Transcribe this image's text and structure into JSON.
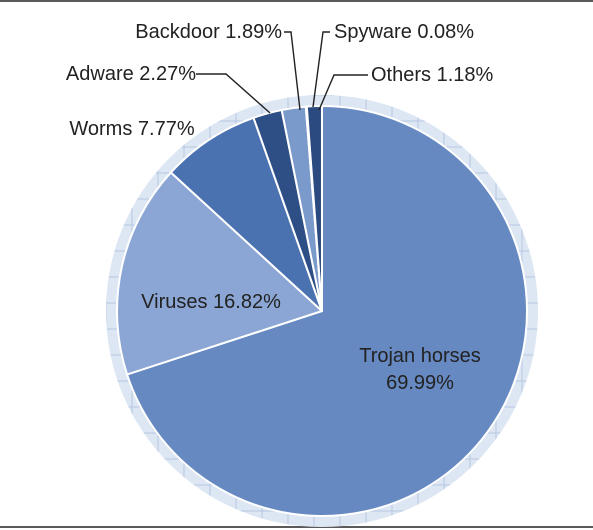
{
  "chart_data": {
    "type": "pie",
    "title": "",
    "start_angle_deg": 0,
    "direction": "clockwise",
    "slices": [
      {
        "name": "Trojan horses",
        "value": 69.99,
        "label": [
          "Trojan horses",
          "69.99%"
        ],
        "color": "#6689c2"
      },
      {
        "name": "Viruses",
        "value": 16.82,
        "label": [
          "Viruses 16.82%"
        ],
        "color": "#8ba6d4"
      },
      {
        "name": "Worms",
        "value": 7.77,
        "label": [
          "Worms 7.77%"
        ],
        "color": "#4a72b0"
      },
      {
        "name": "Adware",
        "value": 2.27,
        "label": [
          "Adware 2.27%"
        ],
        "color": "#2e4f86"
      },
      {
        "name": "Backdoor",
        "value": 1.89,
        "label": [
          "Backdoor 1.89%"
        ],
        "color": "#7a9acc"
      },
      {
        "name": "Spyware",
        "value": 0.08,
        "label": [
          "Spyware 0.08%"
        ],
        "color": "#5578b4"
      },
      {
        "name": "Others",
        "value": 1.18,
        "label": [
          "Others 1.18%"
        ],
        "color": "#2a4a80"
      }
    ],
    "background_disc_color": "#dde6f3",
    "grid_line_color": "#b7c7e2"
  }
}
